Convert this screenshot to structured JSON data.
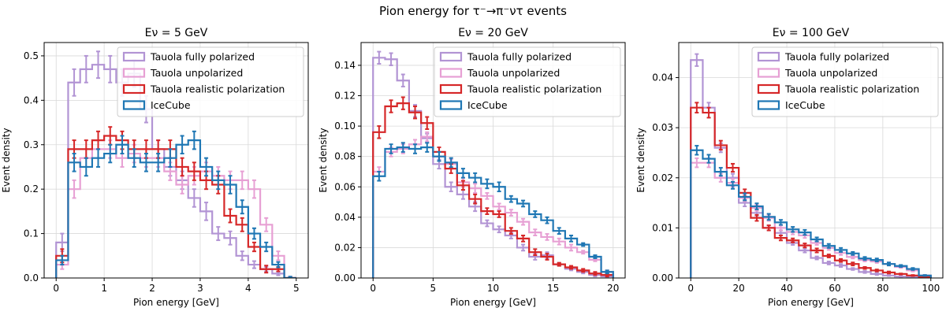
{
  "figure": {
    "suptitle": "Pion energy for τ⁻→π⁻ντ events"
  },
  "colors": {
    "Tauola fully polarized": "#b294d4",
    "Tauola unpolarized": "#e7a0d4",
    "Tauola realistic polarization": "#d62728",
    "IceCube": "#1f77b4",
    "grid": "#d9d9d9"
  },
  "chart_data": [
    {
      "type": "line",
      "title": "Eν = 5 GeV",
      "xlabel": "Pion energy [GeV]",
      "ylabel": "Event density",
      "xlim": [
        -0.25,
        5.25
      ],
      "ylim": [
        0,
        0.53
      ],
      "xticks": [
        0,
        1,
        2,
        3,
        4,
        5
      ],
      "xtick_labels": [
        "0",
        "1",
        "2",
        "3",
        "4",
        "5"
      ],
      "yticks": [
        0.0,
        0.1,
        0.2,
        0.3,
        0.4,
        0.5
      ],
      "ytick_labels": [
        "0.0",
        "0.1",
        "0.2",
        "0.3",
        "0.4",
        "0.5"
      ],
      "grid": true,
      "legend_position": "top-right",
      "bin_edges": [
        0,
        0.25,
        0.5,
        0.75,
        1.0,
        1.25,
        1.5,
        1.75,
        2.0,
        2.25,
        2.5,
        2.75,
        3.0,
        3.25,
        3.5,
        3.75,
        4.0,
        4.25,
        4.5,
        4.75,
        5.0
      ],
      "series": [
        {
          "name": "Tauola fully polarized",
          "values": [
            0.08,
            0.44,
            0.47,
            0.48,
            0.47,
            0.44,
            0.46,
            0.38,
            0.29,
            0.25,
            0.22,
            0.18,
            0.15,
            0.1,
            0.09,
            0.05,
            0.03,
            0.02,
            0.01,
            0.0
          ],
          "errors": [
            0.02,
            0.03,
            0.03,
            0.03,
            0.03,
            0.03,
            0.03,
            0.03,
            0.02,
            0.02,
            0.02,
            0.02,
            0.02,
            0.015,
            0.015,
            0.01,
            0.008,
            0.005,
            0.004,
            0.002
          ]
        },
        {
          "name": "Tauola unpolarized",
          "values": [
            0.03,
            0.2,
            0.27,
            0.29,
            0.29,
            0.27,
            0.28,
            0.27,
            0.27,
            0.24,
            0.21,
            0.23,
            0.24,
            0.23,
            0.22,
            0.22,
            0.2,
            0.12,
            0.05,
            0.0
          ],
          "errors": [
            0.01,
            0.02,
            0.02,
            0.02,
            0.02,
            0.02,
            0.02,
            0.02,
            0.02,
            0.02,
            0.02,
            0.02,
            0.02,
            0.02,
            0.02,
            0.02,
            0.02,
            0.015,
            0.01,
            0.003
          ]
        },
        {
          "name": "Tauola realistic polarization",
          "values": [
            0.05,
            0.29,
            0.29,
            0.31,
            0.32,
            0.31,
            0.29,
            0.29,
            0.29,
            0.29,
            0.25,
            0.24,
            0.22,
            0.21,
            0.14,
            0.12,
            0.07,
            0.02,
            0.02,
            0.0
          ],
          "errors": [
            0.015,
            0.02,
            0.02,
            0.02,
            0.02,
            0.02,
            0.02,
            0.02,
            0.02,
            0.02,
            0.02,
            0.02,
            0.02,
            0.02,
            0.015,
            0.015,
            0.01,
            0.008,
            0.005,
            0.002
          ]
        },
        {
          "name": "IceCube",
          "values": [
            0.04,
            0.26,
            0.25,
            0.27,
            0.28,
            0.3,
            0.27,
            0.26,
            0.26,
            0.27,
            0.3,
            0.31,
            0.25,
            0.22,
            0.21,
            0.16,
            0.1,
            0.07,
            0.03,
            0.0
          ],
          "errors": [
            0.01,
            0.02,
            0.02,
            0.02,
            0.02,
            0.02,
            0.02,
            0.02,
            0.02,
            0.02,
            0.02,
            0.02,
            0.02,
            0.02,
            0.02,
            0.015,
            0.012,
            0.01,
            0.006,
            0.003
          ]
        }
      ]
    },
    {
      "type": "line",
      "title": "Eν = 20 GeV",
      "xlabel": "Pion energy [GeV]",
      "ylabel": "Event density",
      "xlim": [
        -1,
        21
      ],
      "ylim": [
        0,
        0.155
      ],
      "xticks": [
        0,
        5,
        10,
        15,
        20
      ],
      "xtick_labels": [
        "0",
        "5",
        "10",
        "15",
        "20"
      ],
      "yticks": [
        0.0,
        0.02,
        0.04,
        0.06,
        0.08,
        0.1,
        0.12,
        0.14
      ],
      "ytick_labels": [
        "0.00",
        "0.02",
        "0.04",
        "0.06",
        "0.08",
        "0.10",
        "0.12",
        "0.14"
      ],
      "grid": true,
      "legend_position": "top-right",
      "bin_edges": [
        0,
        1,
        2,
        3,
        4,
        5,
        6,
        7,
        8,
        9,
        10,
        11,
        12,
        13,
        14,
        15,
        16,
        17,
        18,
        19,
        20
      ],
      "series": [
        {
          "name": "Tauola fully polarized",
          "values": [
            0.145,
            0.144,
            0.13,
            0.11,
            0.092,
            0.075,
            0.06,
            0.055,
            0.047,
            0.036,
            0.032,
            0.028,
            0.02,
            0.014,
            0.015,
            0.009,
            0.006,
            0.004,
            0.002,
            0.001
          ],
          "errors": [
            0.004,
            0.004,
            0.004,
            0.004,
            0.003,
            0.003,
            0.003,
            0.003,
            0.003,
            0.002,
            0.002,
            0.002,
            0.002,
            0.002,
            0.002,
            0.001,
            0.001,
            0.001,
            0.001,
            0.001
          ]
        },
        {
          "name": "Tauola unpolarized",
          "values": [
            0.07,
            0.083,
            0.085,
            0.088,
            0.093,
            0.08,
            0.075,
            0.063,
            0.059,
            0.054,
            0.047,
            0.043,
            0.037,
            0.03,
            0.027,
            0.024,
            0.02,
            0.017,
            0.012,
            0.004
          ],
          "errors": [
            0.003,
            0.003,
            0.003,
            0.003,
            0.003,
            0.003,
            0.003,
            0.003,
            0.003,
            0.002,
            0.002,
            0.002,
            0.002,
            0.002,
            0.002,
            0.002,
            0.002,
            0.001,
            0.001,
            0.001
          ]
        },
        {
          "name": "Tauola realistic polarization",
          "values": [
            0.096,
            0.113,
            0.115,
            0.109,
            0.102,
            0.083,
            0.072,
            0.061,
            0.052,
            0.044,
            0.042,
            0.031,
            0.026,
            0.017,
            0.014,
            0.009,
            0.007,
            0.005,
            0.003,
            0.002
          ],
          "errors": [
            0.004,
            0.004,
            0.004,
            0.004,
            0.004,
            0.003,
            0.003,
            0.003,
            0.003,
            0.002,
            0.002,
            0.002,
            0.002,
            0.002,
            0.002,
            0.001,
            0.001,
            0.001,
            0.001,
            0.001
          ]
        },
        {
          "name": "IceCube",
          "values": [
            0.067,
            0.085,
            0.086,
            0.085,
            0.086,
            0.08,
            0.076,
            0.069,
            0.066,
            0.062,
            0.06,
            0.052,
            0.049,
            0.042,
            0.038,
            0.031,
            0.026,
            0.022,
            0.014,
            0.004
          ],
          "errors": [
            0.003,
            0.003,
            0.003,
            0.003,
            0.003,
            0.003,
            0.003,
            0.003,
            0.003,
            0.003,
            0.003,
            0.002,
            0.002,
            0.002,
            0.002,
            0.002,
            0.002,
            0.001,
            0.001,
            0.001
          ]
        }
      ]
    },
    {
      "type": "line",
      "title": "Eν = 100 GeV",
      "xlabel": "Pion energy [GeV]",
      "ylabel": "Event density",
      "xlim": [
        -5,
        105
      ],
      "ylim": [
        0,
        0.047
      ],
      "xticks": [
        0,
        20,
        40,
        60,
        80,
        100
      ],
      "xtick_labels": [
        "0",
        "20",
        "40",
        "60",
        "80",
        "100"
      ],
      "yticks": [
        0.0,
        0.01,
        0.02,
        0.03,
        0.04
      ],
      "ytick_labels": [
        "0.00",
        "0.01",
        "0.02",
        "0.03",
        "0.04"
      ],
      "grid": true,
      "legend_position": "top-right",
      "bin_edges": [
        0,
        5,
        10,
        15,
        20,
        25,
        30,
        35,
        40,
        45,
        50,
        55,
        60,
        65,
        70,
        75,
        80,
        85,
        90,
        95,
        100
      ],
      "series": [
        {
          "name": "Tauola fully polarized",
          "values": [
            0.0435,
            0.034,
            0.026,
            0.02,
            0.015,
            0.013,
            0.01,
            0.009,
            0.007,
            0.0055,
            0.004,
            0.003,
            0.0025,
            0.0018,
            0.0012,
            0.0008,
            0.0005,
            0.0003,
            0.0002,
            0.0001
          ],
          "errors": [
            0.0012,
            0.001,
            0.0009,
            0.0008,
            0.0007,
            0.0006,
            0.0005,
            0.0005,
            0.0004,
            0.0004,
            0.0003,
            0.0003,
            0.0003,
            0.0002,
            0.0002,
            0.0002,
            0.0001,
            0.0001,
            0.0001,
            0.0001
          ]
        },
        {
          "name": "Tauola unpolarized",
          "values": [
            0.023,
            0.023,
            0.02,
            0.019,
            0.016,
            0.014,
            0.012,
            0.01,
            0.0092,
            0.0085,
            0.007,
            0.006,
            0.005,
            0.0042,
            0.0036,
            0.0033,
            0.0028,
            0.0022,
            0.0015,
            0.0005
          ],
          "errors": [
            0.0009,
            0.0009,
            0.0008,
            0.0008,
            0.0007,
            0.0006,
            0.0006,
            0.0005,
            0.0005,
            0.0005,
            0.0004,
            0.0004,
            0.0004,
            0.0003,
            0.0003,
            0.0003,
            0.0003,
            0.0002,
            0.0002,
            0.0001
          ]
        },
        {
          "name": "Tauola realistic polarization",
          "values": [
            0.034,
            0.033,
            0.0265,
            0.022,
            0.017,
            0.012,
            0.01,
            0.008,
            0.0075,
            0.0065,
            0.0055,
            0.0044,
            0.0035,
            0.0028,
            0.002,
            0.0015,
            0.0011,
            0.0008,
            0.0005,
            0.0002
          ],
          "errors": [
            0.001,
            0.001,
            0.0009,
            0.0008,
            0.0007,
            0.0006,
            0.0005,
            0.0005,
            0.0004,
            0.0004,
            0.0004,
            0.0003,
            0.0003,
            0.0003,
            0.0002,
            0.0002,
            0.0002,
            0.0001,
            0.0001,
            0.0001
          ]
        },
        {
          "name": "IceCube",
          "values": [
            0.0255,
            0.0238,
            0.0212,
            0.0185,
            0.0162,
            0.0143,
            0.0122,
            0.0111,
            0.0097,
            0.0091,
            0.0077,
            0.0064,
            0.0056,
            0.0049,
            0.0039,
            0.0036,
            0.0028,
            0.0024,
            0.0018,
            0.0005
          ],
          "errors": [
            0.0009,
            0.0008,
            0.0008,
            0.0007,
            0.0007,
            0.0006,
            0.0006,
            0.0005,
            0.0005,
            0.0005,
            0.0004,
            0.0004,
            0.0004,
            0.0003,
            0.0003,
            0.0003,
            0.0003,
            0.0002,
            0.0002,
            0.0001
          ]
        }
      ]
    }
  ]
}
